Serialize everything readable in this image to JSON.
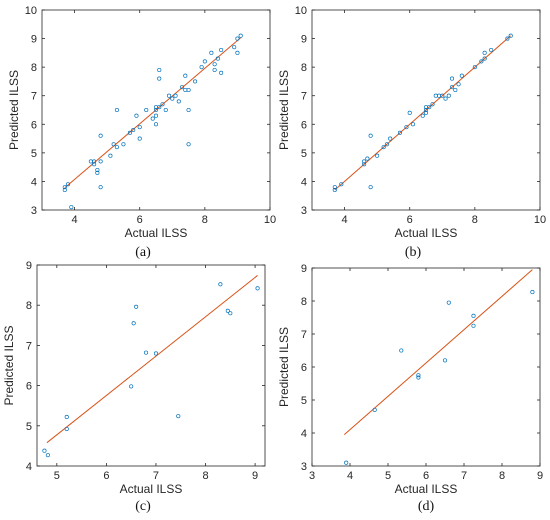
{
  "colors": {
    "point": "#0072BD",
    "fit_line": "#D95319",
    "axes": "#262626",
    "background": "#ffffff"
  },
  "chart_data": [
    {
      "id": "a",
      "type": "scatter",
      "caption": "(a)",
      "xlabel": "Actual ILSS",
      "ylabel": "Predicted ILSS",
      "xlim": [
        3,
        10
      ],
      "ylim": [
        3,
        10
      ],
      "xticks": [
        "4",
        "6",
        "8",
        "10"
      ],
      "yticks": [
        "3",
        "4",
        "5",
        "6",
        "7",
        "8",
        "9",
        "10"
      ],
      "grid": false,
      "legend": "none",
      "fit_line": {
        "x": [
          3.7,
          9.1
        ],
        "y": [
          3.78,
          9.03
        ]
      },
      "points": [
        [
          3.7,
          3.7
        ],
        [
          3.7,
          3.8
        ],
        [
          3.8,
          3.9
        ],
        [
          3.9,
          3.1
        ],
        [
          4.5,
          4.7
        ],
        [
          4.6,
          4.7
        ],
        [
          4.6,
          4.6
        ],
        [
          4.7,
          4.4
        ],
        [
          4.7,
          4.3
        ],
        [
          4.8,
          3.8
        ],
        [
          4.8,
          4.7
        ],
        [
          4.8,
          5.6
        ],
        [
          5.1,
          4.9
        ],
        [
          5.2,
          5.3
        ],
        [
          5.3,
          5.2
        ],
        [
          5.3,
          6.5
        ],
        [
          5.5,
          5.3
        ],
        [
          5.7,
          5.7
        ],
        [
          5.8,
          5.8
        ],
        [
          5.9,
          6.3
        ],
        [
          6.0,
          5.5
        ],
        [
          6.0,
          5.9
        ],
        [
          6.2,
          6.5
        ],
        [
          6.4,
          6.2
        ],
        [
          6.5,
          6.3
        ],
        [
          6.5,
          6.5
        ],
        [
          6.5,
          6.6
        ],
        [
          6.5,
          6.0
        ],
        [
          6.6,
          7.6
        ],
        [
          6.6,
          7.9
        ],
        [
          6.6,
          6.6
        ],
        [
          6.7,
          6.7
        ],
        [
          6.8,
          6.5
        ],
        [
          6.9,
          7.0
        ],
        [
          7.0,
          6.9
        ],
        [
          7.1,
          7.0
        ],
        [
          7.2,
          6.8
        ],
        [
          7.3,
          7.3
        ],
        [
          7.4,
          7.2
        ],
        [
          7.4,
          7.7
        ],
        [
          7.5,
          7.2
        ],
        [
          7.5,
          6.5
        ],
        [
          7.5,
          5.3
        ],
        [
          7.7,
          7.5
        ],
        [
          7.9,
          8.0
        ],
        [
          8.0,
          8.2
        ],
        [
          8.2,
          8.5
        ],
        [
          8.3,
          8.1
        ],
        [
          8.3,
          7.9
        ],
        [
          8.4,
          8.3
        ],
        [
          8.5,
          8.6
        ],
        [
          8.5,
          7.8
        ],
        [
          8.9,
          8.7
        ],
        [
          9.0,
          9.0
        ],
        [
          9.0,
          8.5
        ],
        [
          9.1,
          9.1
        ]
      ]
    },
    {
      "id": "b",
      "type": "scatter",
      "caption": "(b)",
      "xlabel": "Actual ILSS",
      "ylabel": "Predicted ILSS",
      "xlim": [
        3,
        10
      ],
      "ylim": [
        3,
        10
      ],
      "xticks": [
        "4",
        "6",
        "8",
        "10"
      ],
      "yticks": [
        "3",
        "4",
        "5",
        "6",
        "7",
        "8",
        "9",
        "10"
      ],
      "grid": false,
      "legend": "none",
      "fit_line": {
        "x": [
          3.7,
          9.1
        ],
        "y": [
          3.7,
          9.1
        ]
      },
      "points": [
        [
          3.7,
          3.7
        ],
        [
          3.7,
          3.8
        ],
        [
          3.9,
          3.9
        ],
        [
          4.6,
          4.6
        ],
        [
          4.6,
          4.7
        ],
        [
          4.7,
          4.8
        ],
        [
          4.8,
          3.8
        ],
        [
          4.8,
          5.6
        ],
        [
          5.0,
          4.9
        ],
        [
          5.2,
          5.2
        ],
        [
          5.3,
          5.3
        ],
        [
          5.4,
          5.5
        ],
        [
          5.7,
          5.7
        ],
        [
          5.9,
          5.9
        ],
        [
          6.0,
          6.4
        ],
        [
          6.1,
          6.0
        ],
        [
          6.4,
          6.3
        ],
        [
          6.5,
          6.4
        ],
        [
          6.5,
          6.5
        ],
        [
          6.5,
          6.6
        ],
        [
          6.6,
          6.6
        ],
        [
          6.7,
          6.7
        ],
        [
          6.8,
          7.0
        ],
        [
          6.9,
          7.0
        ],
        [
          7.0,
          7.0
        ],
        [
          7.1,
          6.9
        ],
        [
          7.2,
          7.0
        ],
        [
          7.3,
          7.3
        ],
        [
          7.3,
          7.6
        ],
        [
          7.4,
          7.2
        ],
        [
          7.5,
          7.4
        ],
        [
          7.6,
          7.7
        ],
        [
          8.0,
          8.0
        ],
        [
          8.2,
          8.2
        ],
        [
          8.3,
          8.5
        ],
        [
          8.5,
          8.6
        ],
        [
          8.3,
          8.3
        ],
        [
          9.0,
          9.0
        ],
        [
          9.1,
          9.1
        ]
      ]
    },
    {
      "id": "c",
      "type": "scatter",
      "caption": "(c)",
      "xlabel": "Actual ILSS",
      "ylabel": "Predicted ILSS",
      "xlim": [
        4.6,
        9.2
      ],
      "ylim": [
        4,
        9
      ],
      "xticks": [
        "5",
        "6",
        "7",
        "8",
        "9"
      ],
      "yticks": [
        "4",
        "5",
        "6",
        "7",
        "8",
        "9"
      ],
      "grid": false,
      "legend": "none",
      "fit_line": {
        "x": [
          4.8,
          9.05
        ],
        "y": [
          4.58,
          8.74
        ]
      },
      "points": [
        [
          4.75,
          4.38
        ],
        [
          4.82,
          4.27
        ],
        [
          5.2,
          4.92
        ],
        [
          5.2,
          5.22
        ],
        [
          6.5,
          5.98
        ],
        [
          6.55,
          7.55
        ],
        [
          6.6,
          7.96
        ],
        [
          6.8,
          6.82
        ],
        [
          7.0,
          6.8
        ],
        [
          7.45,
          5.24
        ],
        [
          8.3,
          8.52
        ],
        [
          8.45,
          7.86
        ],
        [
          8.5,
          7.8
        ],
        [
          9.05,
          8.42
        ]
      ]
    },
    {
      "id": "d",
      "type": "scatter",
      "caption": "(d)",
      "xlabel": "Actual ILSS",
      "ylabel": "Predicted ILSS",
      "xlim": [
        3,
        9
      ],
      "ylim": [
        3,
        9
      ],
      "xticks": [
        "3",
        "4",
        "5",
        "6",
        "7",
        "8",
        "9"
      ],
      "yticks": [
        "3",
        "4",
        "5",
        "6",
        "7",
        "8",
        "9"
      ],
      "grid": false,
      "legend": "none",
      "fit_line": {
        "x": [
          3.85,
          8.8
        ],
        "y": [
          3.95,
          8.95
        ]
      },
      "points": [
        [
          3.9,
          3.1
        ],
        [
          4.65,
          4.7
        ],
        [
          5.35,
          6.5
        ],
        [
          5.8,
          5.75
        ],
        [
          5.8,
          5.68
        ],
        [
          6.5,
          6.2
        ],
        [
          6.6,
          7.95
        ],
        [
          7.25,
          7.55
        ],
        [
          7.25,
          7.25
        ],
        [
          8.8,
          8.27
        ]
      ]
    }
  ]
}
